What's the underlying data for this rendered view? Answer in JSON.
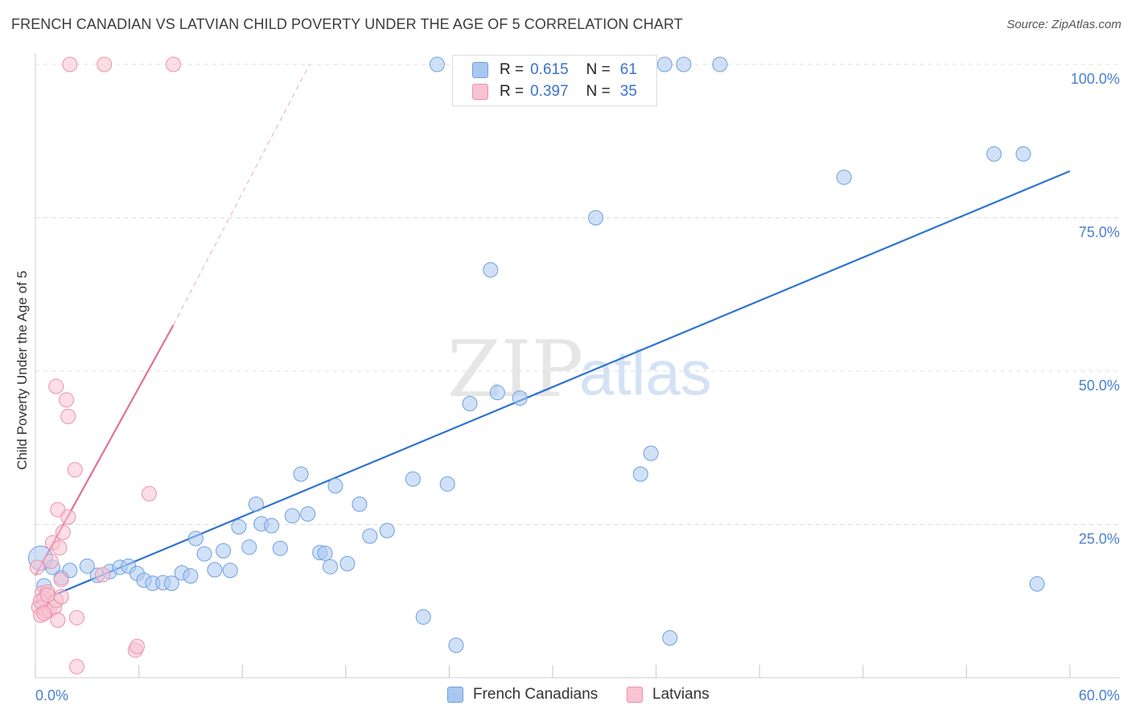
{
  "header": {
    "title": "FRENCH CANADIAN VS LATVIAN CHILD POVERTY UNDER THE AGE OF 5 CORRELATION CHART",
    "source": "Source: ZipAtlas.com"
  },
  "watermark": {
    "zip": "ZIP",
    "atlas": "atlas"
  },
  "legend": {
    "rows": [
      {
        "r_label": "R =",
        "r_value": "0.615",
        "n_label": "N =",
        "n_value": "61",
        "color": "#a9c8f0",
        "border": "#6e9fe0"
      },
      {
        "r_label": "R =",
        "r_value": "0.397",
        "n_label": "N =",
        "n_value": "35",
        "color": "#f8c3d2",
        "border": "#ee8faa"
      }
    ]
  },
  "bottom_legend": {
    "items": [
      {
        "label": "French Canadians",
        "color": "#a9c8f0",
        "border": "#6e9fe0"
      },
      {
        "label": "Latvians",
        "color": "#f8c3d2",
        "border": "#ee8faa"
      }
    ]
  },
  "chart_data": {
    "type": "scatter",
    "title": "FRENCH CANADIAN VS LATVIAN CHILD POVERTY UNDER THE AGE OF 5 CORRELATION CHART",
    "xlabel": "",
    "ylabel": "Child Poverty Under the Age of 5",
    "xlim": [
      0,
      60
    ],
    "ylim": [
      0,
      100
    ],
    "x_tick_labels": [
      "0.0%",
      "60.0%"
    ],
    "y_tick_labels": [
      "100.0%",
      "75.0%",
      "50.0%",
      "25.0%"
    ],
    "y_tick_values": [
      100,
      75,
      50,
      25
    ],
    "grid": true,
    "legend_position": "top-center",
    "series": [
      {
        "name": "French Canadians",
        "color": "#6e9fe0",
        "fill": "#a9c8f0",
        "trend": {
          "x0": 0,
          "y0": 12.2,
          "x1": 60,
          "y1": 82.6,
          "style": "solid",
          "color": "#2f74d0"
        },
        "points": [
          [
            0.3,
            19.5
          ],
          [
            0.5,
            15.0
          ],
          [
            1.0,
            18.0
          ],
          [
            1.5,
            16.3
          ],
          [
            2.0,
            17.5
          ],
          [
            3.0,
            18.2
          ],
          [
            3.6,
            16.7
          ],
          [
            4.3,
            17.3
          ],
          [
            4.9,
            18.0
          ],
          [
            5.4,
            18.2
          ],
          [
            5.9,
            17.0
          ],
          [
            6.3,
            15.9
          ],
          [
            6.8,
            15.4
          ],
          [
            7.4,
            15.5
          ],
          [
            7.9,
            15.4
          ],
          [
            8.5,
            17.1
          ],
          [
            9.0,
            16.6
          ],
          [
            9.3,
            22.7
          ],
          [
            9.8,
            20.2
          ],
          [
            10.4,
            17.6
          ],
          [
            10.9,
            20.7
          ],
          [
            11.3,
            17.5
          ],
          [
            11.8,
            24.6
          ],
          [
            12.4,
            21.3
          ],
          [
            12.8,
            28.3
          ],
          [
            13.1,
            25.1
          ],
          [
            13.7,
            24.8
          ],
          [
            14.2,
            21.1
          ],
          [
            14.9,
            26.4
          ],
          [
            15.4,
            33.2
          ],
          [
            15.8,
            26.7
          ],
          [
            16.5,
            20.4
          ],
          [
            16.8,
            20.3
          ],
          [
            17.1,
            18.1
          ],
          [
            17.4,
            31.3
          ],
          [
            18.1,
            18.6
          ],
          [
            18.8,
            28.3
          ],
          [
            19.4,
            23.1
          ],
          [
            20.4,
            24.0
          ],
          [
            21.9,
            32.4
          ],
          [
            22.5,
            9.9
          ],
          [
            23.3,
            100
          ],
          [
            23.9,
            31.6
          ],
          [
            24.4,
            5.3
          ],
          [
            25.2,
            44.7
          ],
          [
            26.0,
            100
          ],
          [
            26.4,
            66.5
          ],
          [
            26.8,
            46.5
          ],
          [
            28.1,
            45.6
          ],
          [
            29.4,
            100
          ],
          [
            32.5,
            75.0
          ],
          [
            35.1,
            33.2
          ],
          [
            35.7,
            36.6
          ],
          [
            36.5,
            100
          ],
          [
            36.8,
            6.5
          ],
          [
            37.6,
            100
          ],
          [
            39.7,
            100
          ],
          [
            46.9,
            81.6
          ],
          [
            55.6,
            85.4
          ],
          [
            57.3,
            85.4
          ],
          [
            58.1,
            15.3
          ]
        ]
      },
      {
        "name": "Latvians",
        "color": "#ee8faa",
        "fill": "#f8c3d2",
        "trend": {
          "x0": 0,
          "y0": 16.7,
          "x1": 8.0,
          "y1": 57.5,
          "style": "solid",
          "color": "#e2709a"
        },
        "trend_dashed": {
          "x0": 8.0,
          "y0": 57.5,
          "x1": 15.9,
          "y1": 100.0,
          "color": "#f0a8c0"
        },
        "points": [
          [
            0.2,
            11.5
          ],
          [
            0.3,
            10.2
          ],
          [
            0.4,
            13.8
          ],
          [
            0.5,
            12.9
          ],
          [
            0.6,
            10.9
          ],
          [
            0.7,
            14.0
          ],
          [
            0.8,
            11.0
          ],
          [
            0.9,
            19.0
          ],
          [
            1.0,
            22.0
          ],
          [
            1.1,
            11.5
          ],
          [
            1.2,
            12.6
          ],
          [
            1.2,
            47.5
          ],
          [
            1.3,
            9.4
          ],
          [
            1.3,
            27.4
          ],
          [
            1.4,
            21.2
          ],
          [
            1.5,
            13.2
          ],
          [
            1.5,
            16.0
          ],
          [
            1.6,
            23.7
          ],
          [
            1.8,
            45.3
          ],
          [
            1.9,
            42.6
          ],
          [
            1.9,
            26.2
          ],
          [
            2.0,
            100
          ],
          [
            2.3,
            33.9
          ],
          [
            2.4,
            9.8
          ],
          [
            2.4,
            1.8
          ],
          [
            4.0,
            100
          ],
          [
            3.9,
            16.8
          ],
          [
            5.8,
            4.5
          ],
          [
            5.9,
            5.1
          ],
          [
            6.6,
            30.0
          ],
          [
            8.0,
            100
          ],
          [
            0.1,
            18.0
          ],
          [
            0.3,
            12.5
          ],
          [
            0.5,
            10.5
          ],
          [
            0.7,
            13.5
          ]
        ]
      }
    ]
  }
}
